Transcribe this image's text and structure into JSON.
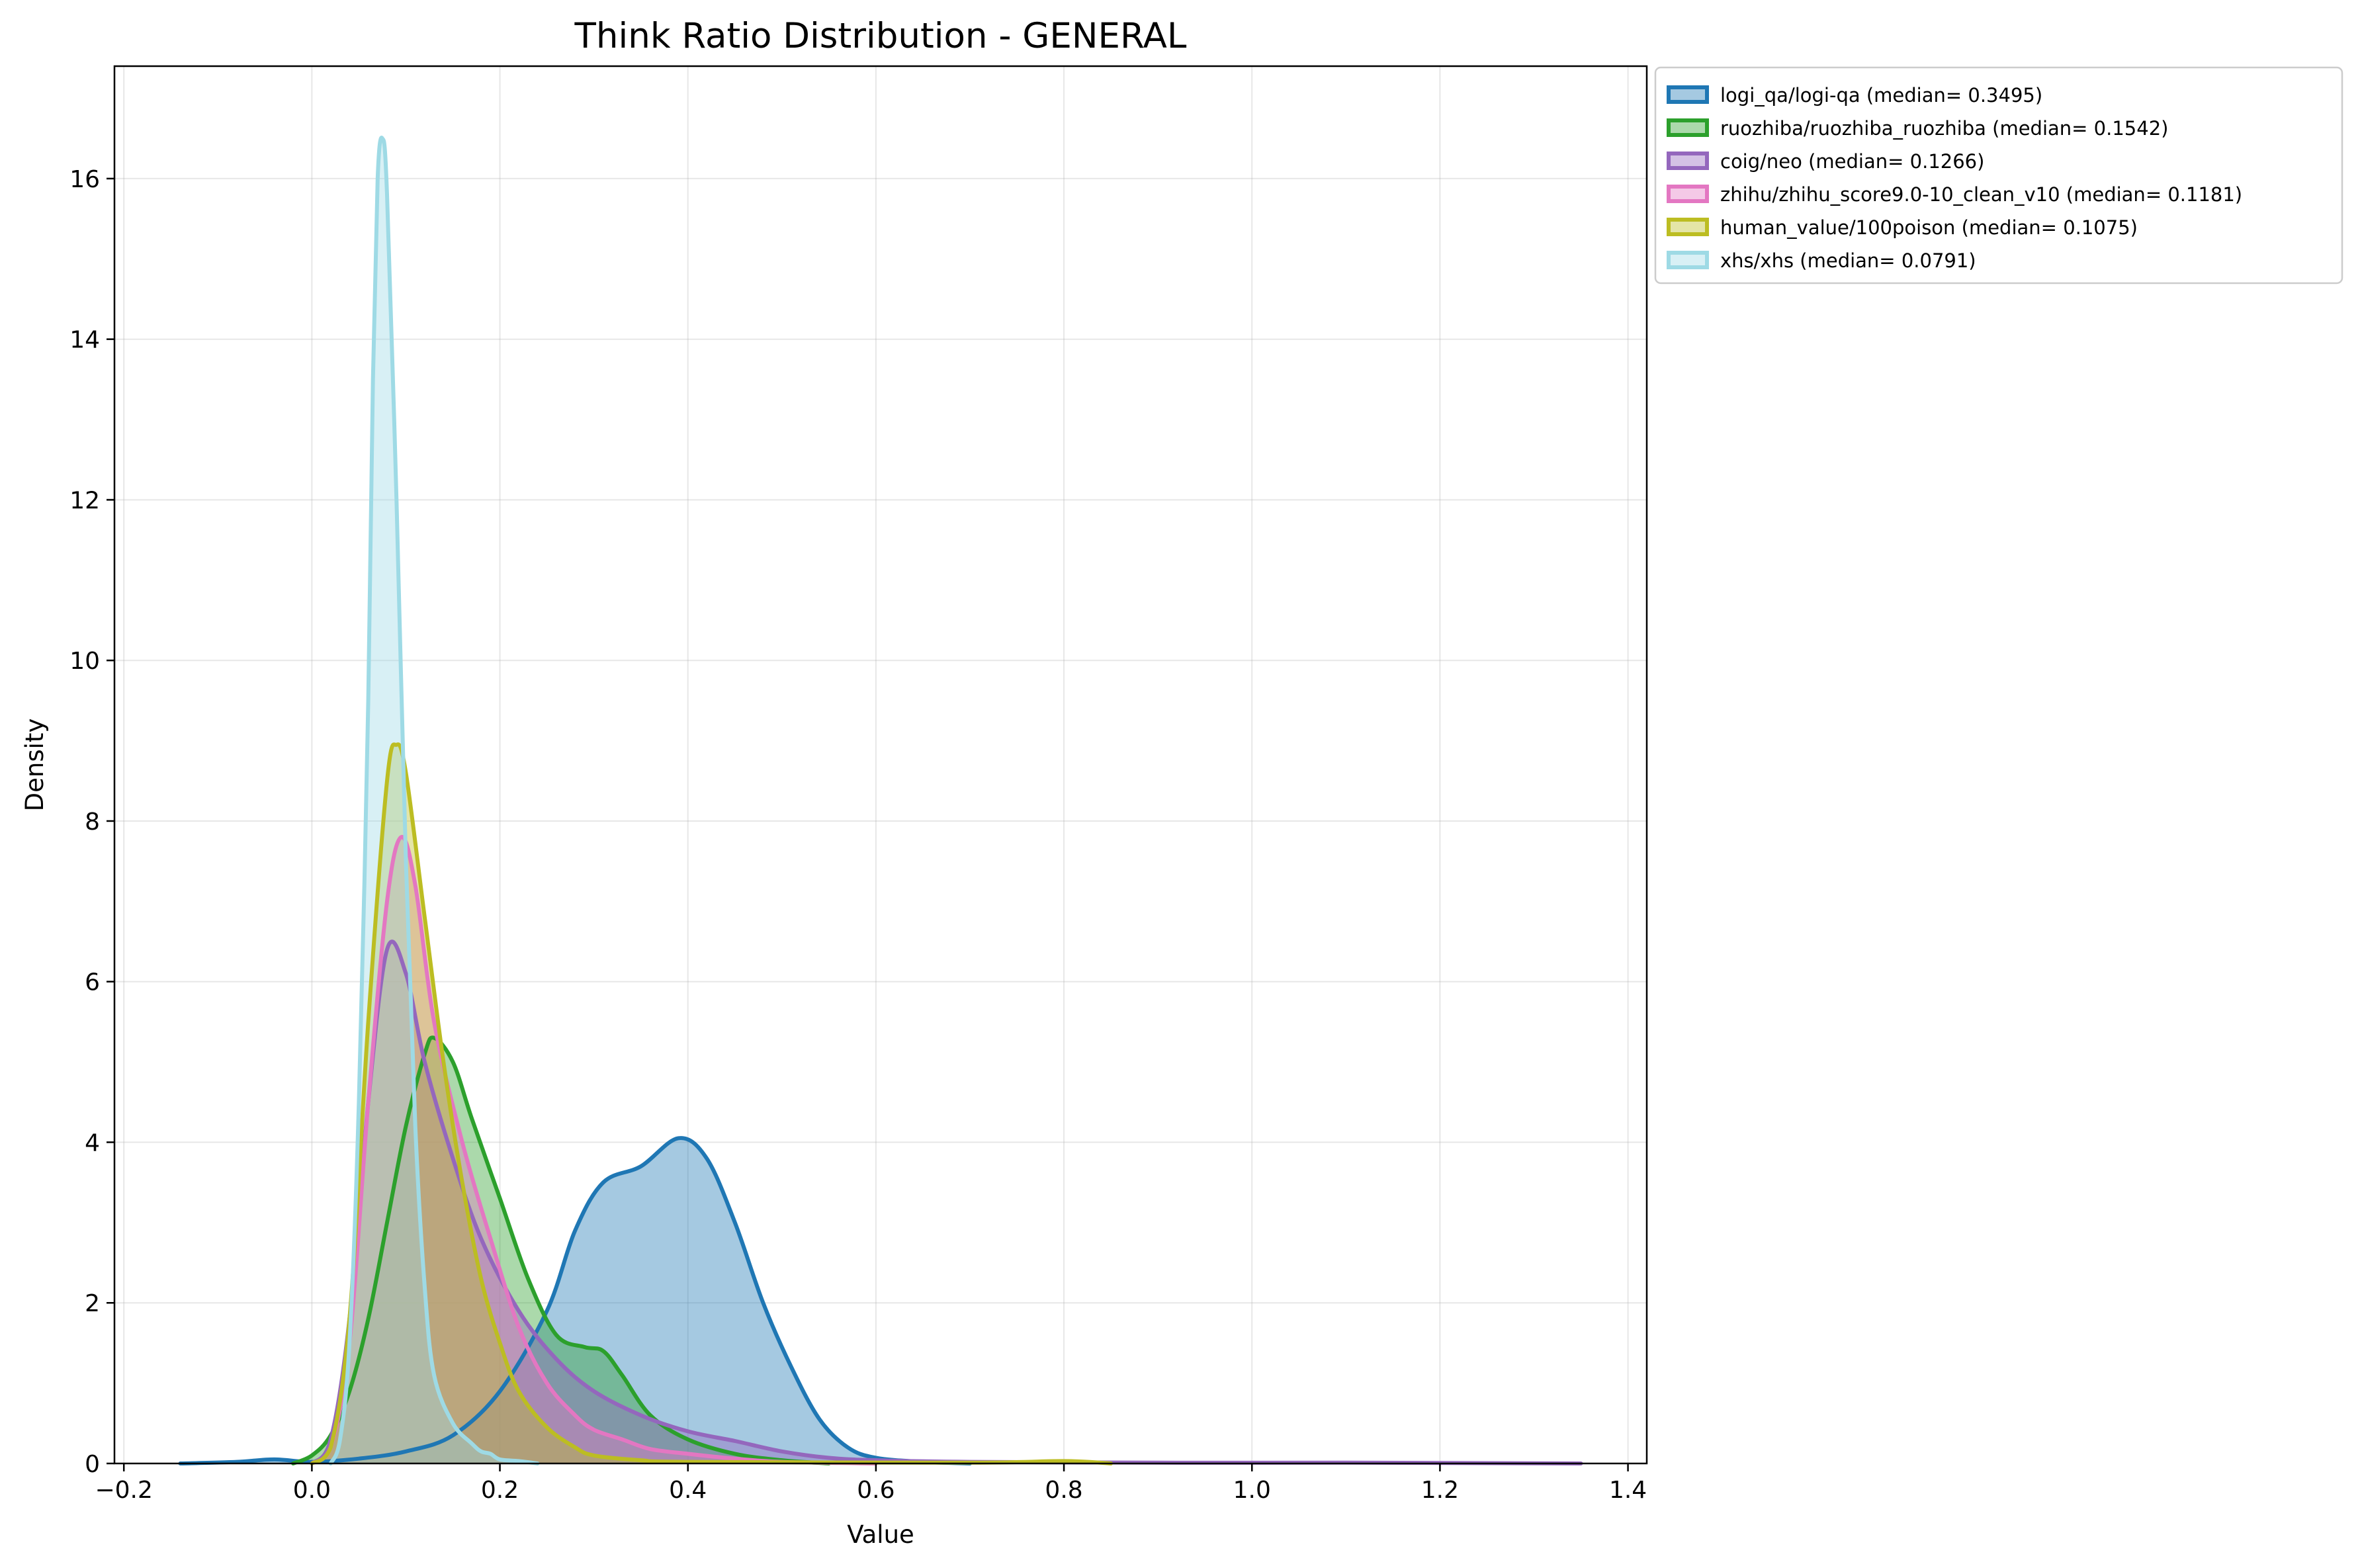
{
  "chart_data": {
    "type": "area",
    "title": "Think Ratio Distribution - GENERAL",
    "xlabel": "Value",
    "ylabel": "Density",
    "xlim": [
      -0.21,
      1.42
    ],
    "ylim": [
      0,
      17.4
    ],
    "xticks": [
      -0.2,
      0.0,
      0.2,
      0.4,
      0.6,
      0.8,
      1.0,
      1.2,
      1.4
    ],
    "xtick_labels": [
      "−0.2",
      "0.0",
      "0.2",
      "0.4",
      "0.6",
      "0.8",
      "1.0",
      "1.2",
      "1.4"
    ],
    "yticks": [
      0,
      2,
      4,
      6,
      8,
      10,
      12,
      14,
      16
    ],
    "ytick_labels": [
      "0",
      "2",
      "4",
      "6",
      "8",
      "10",
      "12",
      "14",
      "16"
    ],
    "grid": true,
    "legend_position": "outside-top-right",
    "series": [
      {
        "name": "logi_qa/logi-qa (median= 0.3495)",
        "color": "#1f77b4",
        "points": [
          [
            -0.14,
            0
          ],
          [
            -0.08,
            0.02
          ],
          [
            -0.04,
            0.05
          ],
          [
            0.0,
            0.02
          ],
          [
            0.05,
            0.06
          ],
          [
            0.1,
            0.15
          ],
          [
            0.15,
            0.35
          ],
          [
            0.2,
            0.9
          ],
          [
            0.25,
            1.9
          ],
          [
            0.28,
            2.9
          ],
          [
            0.31,
            3.5
          ],
          [
            0.35,
            3.7
          ],
          [
            0.39,
            4.05
          ],
          [
            0.42,
            3.8
          ],
          [
            0.45,
            3.0
          ],
          [
            0.48,
            2.0
          ],
          [
            0.51,
            1.2
          ],
          [
            0.54,
            0.55
          ],
          [
            0.57,
            0.2
          ],
          [
            0.6,
            0.07
          ],
          [
            0.65,
            0.02
          ],
          [
            0.7,
            0
          ]
        ]
      },
      {
        "name": "ruozhiba/ruozhiba_ruozhiba (median= 0.1542)",
        "color": "#2ca02c",
        "points": [
          [
            -0.02,
            0
          ],
          [
            0.0,
            0.1
          ],
          [
            0.02,
            0.35
          ],
          [
            0.04,
            0.9
          ],
          [
            0.06,
            1.8
          ],
          [
            0.08,
            3.0
          ],
          [
            0.1,
            4.2
          ],
          [
            0.12,
            5.1
          ],
          [
            0.13,
            5.3
          ],
          [
            0.15,
            5.0
          ],
          [
            0.17,
            4.3
          ],
          [
            0.2,
            3.3
          ],
          [
            0.23,
            2.3
          ],
          [
            0.26,
            1.6
          ],
          [
            0.29,
            1.45
          ],
          [
            0.31,
            1.4
          ],
          [
            0.33,
            1.1
          ],
          [
            0.36,
            0.6
          ],
          [
            0.4,
            0.3
          ],
          [
            0.45,
            0.12
          ],
          [
            0.5,
            0.04
          ],
          [
            0.55,
            0
          ]
        ]
      },
      {
        "name": "coig/neo (median= 0.1266)",
        "color": "#9467bd",
        "points": [
          [
            0.0,
            0
          ],
          [
            0.02,
            0.3
          ],
          [
            0.04,
            1.8
          ],
          [
            0.06,
            4.5
          ],
          [
            0.08,
            6.4
          ],
          [
            0.1,
            6.1
          ],
          [
            0.12,
            5.0
          ],
          [
            0.15,
            3.8
          ],
          [
            0.18,
            2.8
          ],
          [
            0.22,
            1.9
          ],
          [
            0.26,
            1.3
          ],
          [
            0.3,
            0.9
          ],
          [
            0.35,
            0.6
          ],
          [
            0.4,
            0.4
          ],
          [
            0.45,
            0.28
          ],
          [
            0.5,
            0.15
          ],
          [
            0.55,
            0.07
          ],
          [
            0.6,
            0.04
          ],
          [
            0.7,
            0.02
          ],
          [
            0.9,
            0.01
          ],
          [
            1.1,
            0.01
          ],
          [
            1.35,
            0
          ]
        ]
      },
      {
        "name": "zhihu/zhihu_score9.0-10_clean_v10 (median= 0.1181)",
        "color": "#e377c2",
        "points": [
          [
            0.0,
            0
          ],
          [
            0.02,
            0.2
          ],
          [
            0.04,
            1.5
          ],
          [
            0.06,
            4.5
          ],
          [
            0.08,
            7.0
          ],
          [
            0.095,
            7.8
          ],
          [
            0.11,
            7.2
          ],
          [
            0.13,
            5.5
          ],
          [
            0.16,
            4.0
          ],
          [
            0.19,
            2.8
          ],
          [
            0.22,
            1.7
          ],
          [
            0.25,
            1.0
          ],
          [
            0.28,
            0.6
          ],
          [
            0.3,
            0.42
          ],
          [
            0.33,
            0.3
          ],
          [
            0.36,
            0.18
          ],
          [
            0.4,
            0.12
          ],
          [
            0.45,
            0.06
          ],
          [
            0.5,
            0.02
          ],
          [
            0.6,
            0
          ]
        ]
      },
      {
        "name": "human_value/100poison (median= 0.1075)",
        "color": "#bcbd22",
        "points": [
          [
            0.0,
            0
          ],
          [
            0.02,
            0.2
          ],
          [
            0.04,
            1.8
          ],
          [
            0.06,
            5.5
          ],
          [
            0.08,
            8.5
          ],
          [
            0.09,
            8.95
          ],
          [
            0.1,
            8.6
          ],
          [
            0.12,
            6.8
          ],
          [
            0.14,
            5.0
          ],
          [
            0.16,
            3.5
          ],
          [
            0.18,
            2.3
          ],
          [
            0.2,
            1.5
          ],
          [
            0.22,
            0.9
          ],
          [
            0.25,
            0.45
          ],
          [
            0.28,
            0.2
          ],
          [
            0.3,
            0.1
          ],
          [
            0.35,
            0.04
          ],
          [
            0.4,
            0.02
          ],
          [
            0.7,
            0.01
          ],
          [
            0.8,
            0.03
          ],
          [
            0.85,
            0
          ]
        ]
      },
      {
        "name": "xhs/xhs (median= 0.0791)",
        "color": "#9edae5",
        "points": [
          [
            0.02,
            0
          ],
          [
            0.03,
            0.3
          ],
          [
            0.04,
            1.5
          ],
          [
            0.05,
            4.5
          ],
          [
            0.06,
            9.5
          ],
          [
            0.065,
            13.5
          ],
          [
            0.07,
            16.0
          ],
          [
            0.075,
            16.5
          ],
          [
            0.08,
            15.8
          ],
          [
            0.09,
            12.0
          ],
          [
            0.1,
            7.5
          ],
          [
            0.11,
            4.2
          ],
          [
            0.12,
            2.2
          ],
          [
            0.13,
            1.1
          ],
          [
            0.15,
            0.5
          ],
          [
            0.17,
            0.25
          ],
          [
            0.18,
            0.15
          ],
          [
            0.19,
            0.12
          ],
          [
            0.2,
            0.05
          ],
          [
            0.22,
            0.03
          ],
          [
            0.24,
            0
          ]
        ]
      }
    ]
  }
}
